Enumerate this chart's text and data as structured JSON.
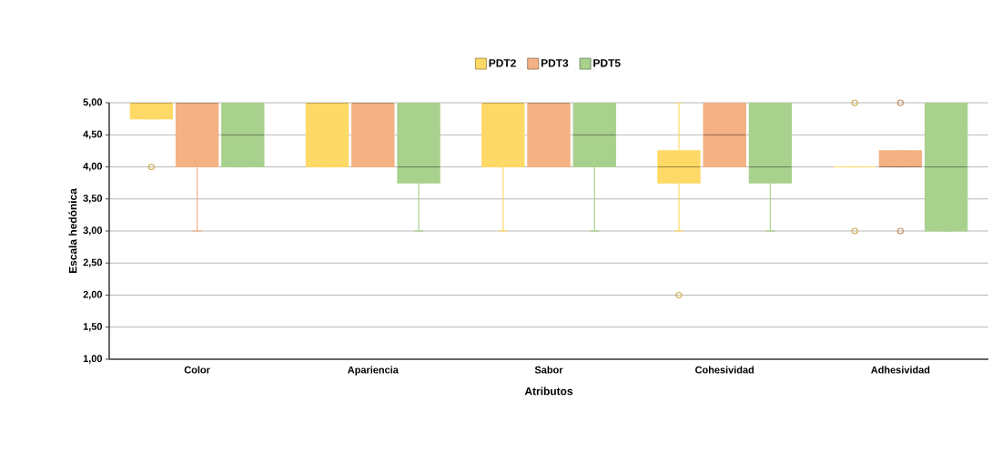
{
  "chart_data": {
    "type": "box",
    "xlabel": "Atributos",
    "ylabel": "Escala hedónica",
    "categories": [
      "Color",
      "Apariencia",
      "Sabor",
      "Cohesividad",
      "Adhesividad"
    ],
    "ylim": [
      1,
      5
    ],
    "yticks": [
      {
        "value": 1,
        "label": "1,00"
      },
      {
        "value": 1.5,
        "label": "1,50"
      },
      {
        "value": 2,
        "label": "2,00"
      },
      {
        "value": 2.5,
        "label": "2,50"
      },
      {
        "value": 3,
        "label": "3,00"
      },
      {
        "value": 3.5,
        "label": "3,50"
      },
      {
        "value": 4,
        "label": "4,00"
      },
      {
        "value": 4.5,
        "label": "4,50"
      },
      {
        "value": 5,
        "label": "5,00"
      }
    ],
    "grid": "y",
    "legend": "top",
    "series": [
      {
        "name": "PDT2",
        "color": "#ffd966",
        "boxes": [
          {
            "low": 4.75,
            "q1": 4.75,
            "median": 5,
            "q3": 5,
            "high": 5,
            "outliers": [
              4
            ]
          },
          {
            "low": 4,
            "q1": 4,
            "median": 5,
            "q3": 5,
            "high": 5
          },
          {
            "low": 3,
            "q1": 4,
            "median": 5,
            "q3": 5,
            "high": 5
          },
          {
            "low": 3,
            "q1": 3.75,
            "median": 4,
            "q3": 4.25,
            "high": 5,
            "outliers": [
              2
            ]
          },
          {
            "low": 4,
            "q1": 4,
            "median": 4,
            "q3": 4,
            "high": 4,
            "outliers": [
              3,
              5
            ]
          }
        ]
      },
      {
        "name": "PDT3",
        "color": "#f4b183",
        "boxes": [
          {
            "low": 3,
            "q1": 4,
            "median": 5,
            "q3": 5,
            "high": 5
          },
          {
            "low": 4,
            "q1": 4,
            "median": 5,
            "q3": 5,
            "high": 5
          },
          {
            "low": 4,
            "q1": 4,
            "median": 5,
            "q3": 5,
            "high": 5
          },
          {
            "low": 4,
            "q1": 4,
            "median": 4.5,
            "q3": 5,
            "high": 5
          },
          {
            "low": 4,
            "q1": 4,
            "median": 4,
            "q3": 4.25,
            "high": 4.25,
            "outliers": [
              3,
              5
            ]
          }
        ]
      },
      {
        "name": "PDT5",
        "color": "#a9d18e",
        "boxes": [
          {
            "low": 4,
            "q1": 4,
            "median": 4.5,
            "q3": 5,
            "high": 5
          },
          {
            "low": 3,
            "q1": 3.75,
            "median": 4,
            "q3": 5,
            "high": 5
          },
          {
            "low": 3,
            "q1": 4,
            "median": 4.5,
            "q3": 5,
            "high": 5
          },
          {
            "low": 3,
            "q1": 3.75,
            "median": 4,
            "q3": 5,
            "high": 5
          },
          {
            "low": 3,
            "q1": 3,
            "median": 4,
            "q3": 5,
            "high": 5
          }
        ]
      }
    ]
  }
}
